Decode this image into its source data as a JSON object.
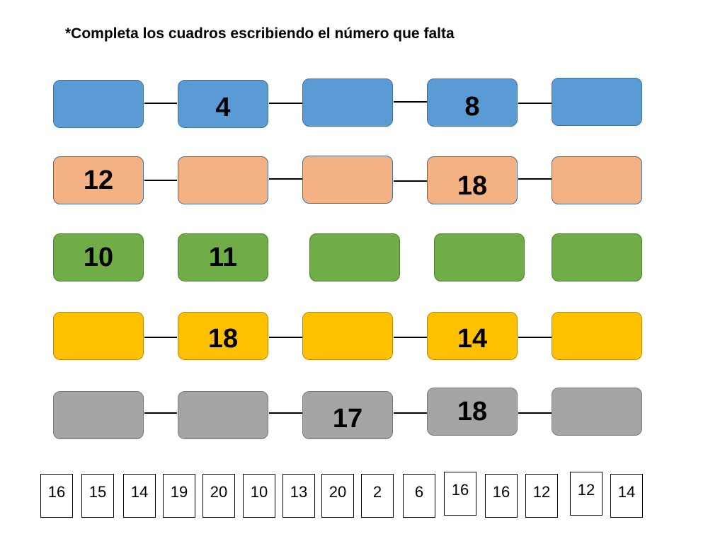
{
  "instruction": "*Completa los cuadros escribiendo el número que falta",
  "rows": [
    {
      "color": "#5b9bd5",
      "boxes": [
        "",
        "4",
        "",
        "8",
        ""
      ]
    },
    {
      "color": "#f4b183",
      "boxes": [
        "12",
        "",
        "",
        "18",
        ""
      ]
    },
    {
      "color": "#70ad47",
      "boxes": [
        "10",
        "11",
        "",
        "",
        ""
      ]
    },
    {
      "color": "#ffc000",
      "boxes": [
        "",
        "18",
        "",
        "14",
        ""
      ]
    },
    {
      "color": "#a5a5a5",
      "boxes": [
        "",
        "",
        "17",
        "18",
        ""
      ]
    }
  ],
  "answer_tiles": [
    "16",
    "15",
    "14",
    "19",
    "20",
    "10",
    "13",
    "20",
    "2",
    "6",
    "16",
    "16",
    "12",
    "12",
    "14"
  ]
}
